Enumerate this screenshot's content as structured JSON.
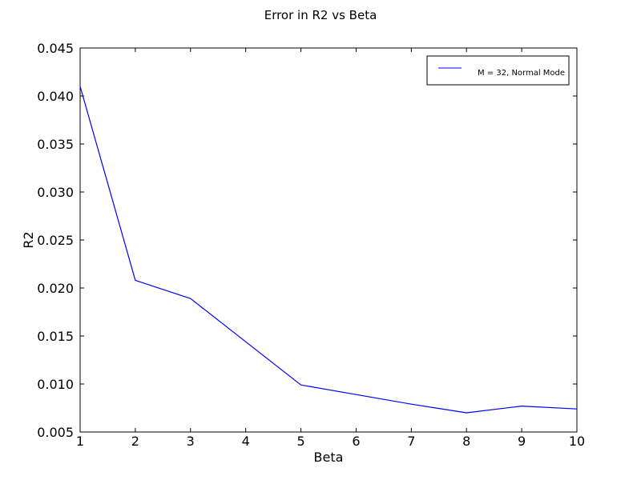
{
  "chart_data": {
    "type": "line",
    "title": "Error in R2 vs Beta",
    "xlabel": "Beta",
    "ylabel": "R2",
    "xlim": [
      1,
      10
    ],
    "ylim": [
      0.005,
      0.045
    ],
    "x_ticks": [
      1,
      2,
      3,
      4,
      5,
      6,
      7,
      8,
      9,
      10
    ],
    "x_tick_labels": [
      "1",
      "2",
      "3",
      "4",
      "5",
      "6",
      "7",
      "8",
      "9",
      "10"
    ],
    "y_ticks": [
      0.005,
      0.01,
      0.015,
      0.02,
      0.025,
      0.03,
      0.035,
      0.04,
      0.045
    ],
    "y_tick_labels": [
      "0.005",
      "0.010",
      "0.015",
      "0.020",
      "0.025",
      "0.030",
      "0.035",
      "0.040",
      "0.045"
    ],
    "grid": false,
    "legend_position": "top-right",
    "series": [
      {
        "name": "M = 32, Normal Mode",
        "color": "#0000ff",
        "x": [
          1,
          2,
          3,
          4,
          5,
          6,
          7,
          8,
          9,
          10
        ],
        "values": [
          0.041,
          0.0208,
          0.0189,
          0.0144,
          0.0099,
          0.0089,
          0.0079,
          0.007,
          0.0077,
          0.0074
        ]
      }
    ]
  }
}
